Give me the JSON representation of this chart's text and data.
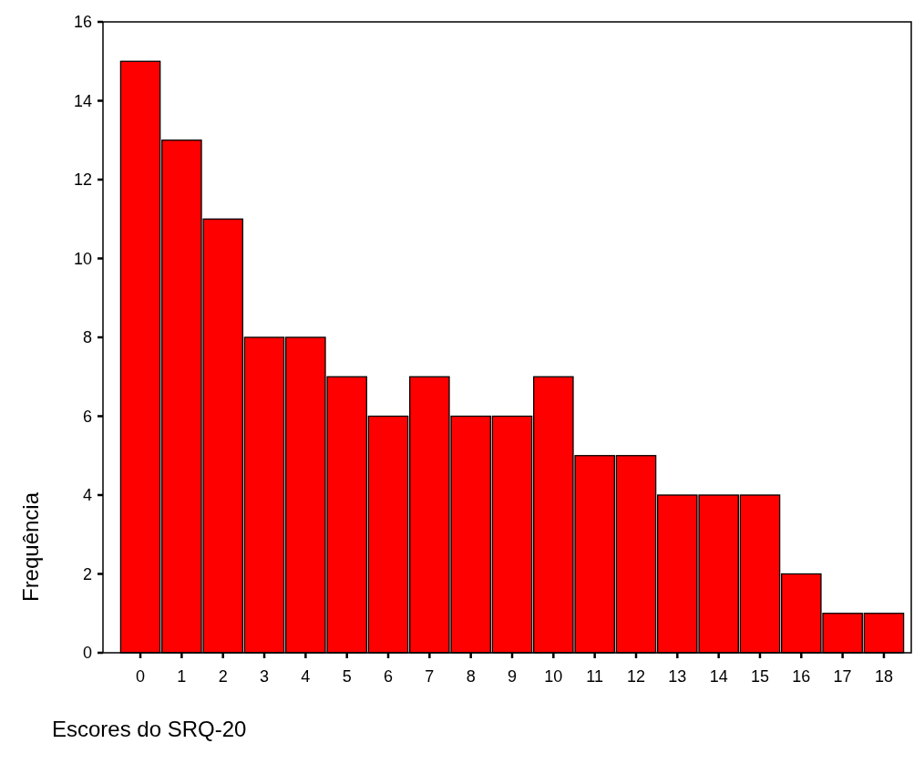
{
  "chart_data": {
    "type": "bar",
    "xlabel": "Escores do SRQ-20",
    "ylabel": "Frequência",
    "categories": [
      "0",
      "1",
      "2",
      "3",
      "4",
      "5",
      "6",
      "7",
      "8",
      "9",
      "10",
      "11",
      "12",
      "13",
      "14",
      "15",
      "16",
      "17",
      "18"
    ],
    "values": [
      15,
      13,
      11,
      8,
      8,
      7,
      6,
      7,
      6,
      6,
      7,
      5,
      5,
      4,
      4,
      4,
      2,
      1,
      1
    ],
    "color": "#ff0000",
    "ylim": [
      0,
      16
    ],
    "yticks": [
      0,
      2,
      4,
      6,
      8,
      10,
      12,
      14,
      16
    ],
    "grid": false
  }
}
